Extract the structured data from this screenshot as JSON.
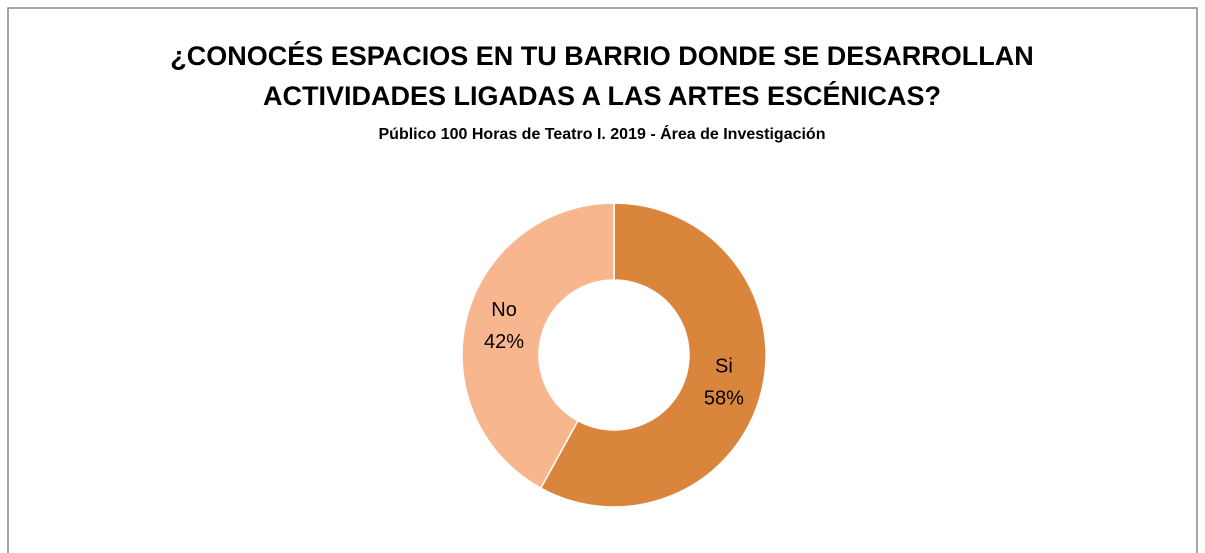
{
  "chart_data": {
    "type": "donut",
    "title": [
      "¿CONOCÉS ESPACIOS EN TU BARRIO DONDE SE DESARROLLAN",
      "ACTIVIDADES LIGADAS A LAS ARTES ESCÉNICAS?"
    ],
    "subtitle": "Público 100 Horas de Teatro I. 2019 - Área de Investigación",
    "categories": [
      "Si",
      "No"
    ],
    "values": [
      58,
      42
    ],
    "value_labels": [
      "58%",
      "42%"
    ],
    "colors": [
      "#d9853b",
      "#f8b68f"
    ]
  }
}
